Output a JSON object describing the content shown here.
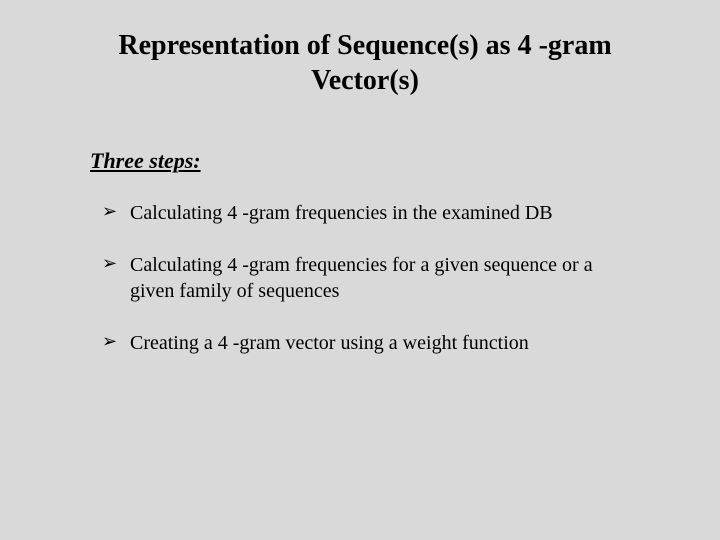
{
  "slide": {
    "background_color": "#d9d9d9",
    "text_color": "#000000",
    "font_family": "Times New Roman",
    "title": {
      "line1": "Representation of Sequence(s) as 4 -gram",
      "line2": "Vector(s)",
      "fontsize": 28,
      "fontweight": "bold",
      "align": "center"
    },
    "subhead": {
      "text": "Three steps:",
      "fontsize": 22,
      "italic": true,
      "bold": true,
      "underline": true
    },
    "bullets": {
      "marker": "➢",
      "fontsize": 20,
      "items": [
        "Calculating 4 -gram frequencies in the examined DB",
        "Calculating 4 -gram frequencies for a given sequence or a given family of sequences",
        "Creating a 4 -gram vector using a weight function"
      ]
    }
  }
}
